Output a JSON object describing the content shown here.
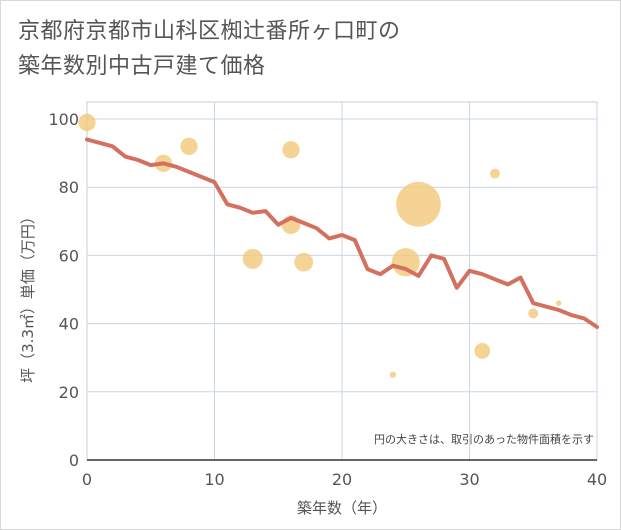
{
  "title_line1": "京都府京都市山科区椥辻番所ヶ口町の",
  "title_line2": "築年数別中古戸建て価格",
  "chart_data": {
    "type": "scatter",
    "title": "京都府京都市山科区椥辻番所ヶ口町の築年数別中古戸建て価格",
    "xlabel": "築年数（年）",
    "ylabel": "坪（3.3㎡）単価（万円）",
    "xlim": [
      0,
      40
    ],
    "ylim": [
      0,
      105
    ],
    "xticks": [
      0,
      10,
      20,
      30,
      40
    ],
    "yticks": [
      0,
      20,
      40,
      60,
      80,
      100
    ],
    "grid": true,
    "note": "円の大きさは、取引のあった物件面積を示す",
    "bubble_color": "#f2c879",
    "line_color": "#d4705f",
    "points": [
      {
        "x": 0,
        "y": 99,
        "size": 3
      },
      {
        "x": 6,
        "y": 87,
        "size": 3
      },
      {
        "x": 8,
        "y": 92,
        "size": 3
      },
      {
        "x": 13,
        "y": 59,
        "size": 4
      },
      {
        "x": 16,
        "y": 91,
        "size": 3
      },
      {
        "x": 16,
        "y": 69,
        "size": 3.5
      },
      {
        "x": 17,
        "y": 58,
        "size": 3.5
      },
      {
        "x": 24,
        "y": 25,
        "size": 0.4
      },
      {
        "x": 25,
        "y": 58,
        "size": 8
      },
      {
        "x": 26,
        "y": 75,
        "size": 20
      },
      {
        "x": 31,
        "y": 32,
        "size": 2.5
      },
      {
        "x": 32,
        "y": 84,
        "size": 1
      },
      {
        "x": 35,
        "y": 43,
        "size": 1
      },
      {
        "x": 37,
        "y": 46,
        "size": 0.3
      }
    ],
    "trend": {
      "x": [
        0,
        1,
        2,
        3,
        4,
        5,
        6,
        7,
        8,
        9,
        10,
        11,
        12,
        13,
        14,
        15,
        16,
        17,
        18,
        19,
        20,
        21,
        22,
        23,
        24,
        25,
        26,
        27,
        28,
        29,
        30,
        31,
        32,
        33,
        34,
        35,
        36,
        37,
        38,
        39,
        40
      ],
      "y": [
        94,
        93,
        92,
        89,
        88,
        86.5,
        87,
        86,
        84.5,
        83,
        81.5,
        75,
        74,
        72.5,
        73,
        69,
        71,
        69.5,
        68,
        65,
        66,
        64.5,
        56,
        54.5,
        57,
        56,
        54,
        60,
        59,
        50.5,
        55.5,
        54.5,
        53,
        51.5,
        53.5,
        46,
        45,
        44,
        42.5,
        41.5,
        39
      ]
    }
  }
}
